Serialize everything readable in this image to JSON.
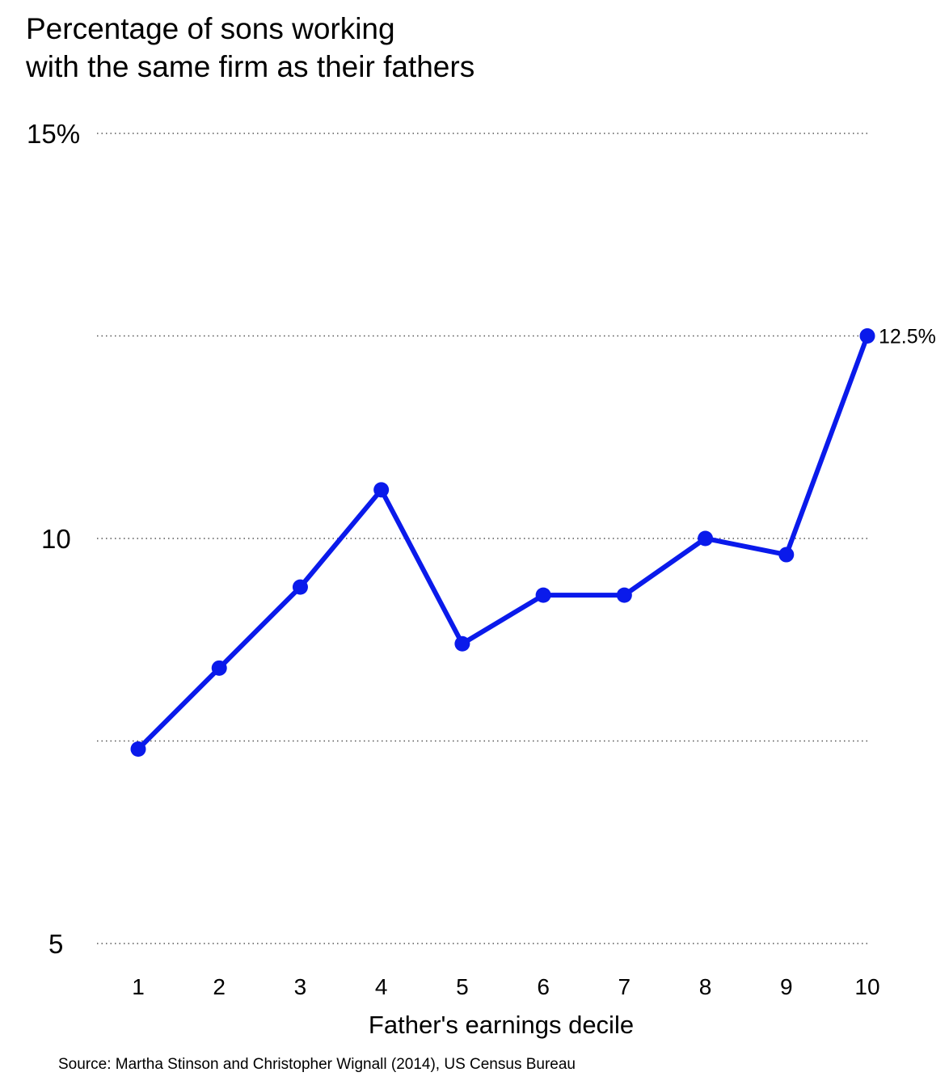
{
  "chart_data": {
    "type": "line",
    "title": [
      "Percentage of sons working",
      "with the same firm as their fathers"
    ],
    "xlabel": "Father's earnings decile",
    "ylabel": "",
    "x": [
      1,
      2,
      3,
      4,
      5,
      6,
      7,
      8,
      9,
      10
    ],
    "x_tick_labels": [
      "1",
      "2",
      "3",
      "4",
      "5",
      "6",
      "7",
      "8",
      "9",
      "10"
    ],
    "series": [
      {
        "values": [
          7.4,
          8.4,
          9.4,
          10.6,
          8.7,
          9.3,
          9.3,
          10.0,
          9.8,
          12.5
        ],
        "color": "#0a1aeb"
      }
    ],
    "ylim": [
      5,
      15
    ],
    "y_ticks": [
      5,
      7.5,
      10,
      12.5,
      15
    ],
    "y_tick_labels": [
      "5",
      "",
      "10",
      "",
      "15%"
    ],
    "grid": true,
    "grid_style": "dotted",
    "annotations": [
      {
        "x": 10,
        "y": 12.5,
        "text": "12.5%"
      }
    ],
    "source": "Source: Martha Stinson and Christopher Wignall (2014), US Census Bureau"
  }
}
